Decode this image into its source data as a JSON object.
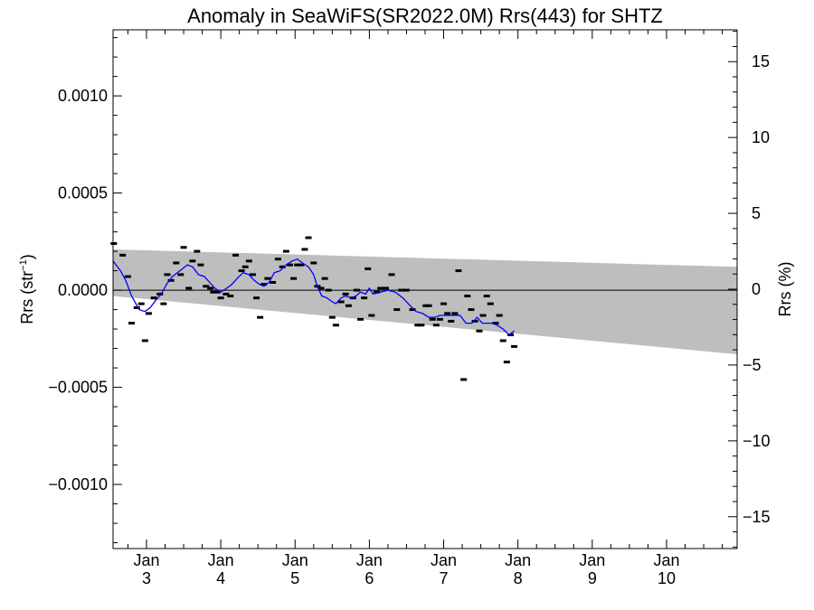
{
  "chart_data": {
    "type": "scatter",
    "title": "Anomaly in SeaWiFS(SR2022.0M) Rrs(443) for SHTZ",
    "ylabel_left": "Rrs (str",
    "ylabel_left_sup": "−1",
    "ylabel_left_close": ")",
    "ylabel_right": "Rrs (%)",
    "xlim": [
      2.55,
      10.95
    ],
    "ylim_left": [
      -0.00133,
      0.00134
    ],
    "ylim_right": [
      -17.1,
      17.1
    ],
    "x_ticks": [
      {
        "x": 3,
        "top": "Jan",
        "bottom": "3"
      },
      {
        "x": 4,
        "top": "Jan",
        "bottom": "4"
      },
      {
        "x": 5,
        "top": "Jan",
        "bottom": "5"
      },
      {
        "x": 6,
        "top": "Jan",
        "bottom": "6"
      },
      {
        "x": 7,
        "top": "Jan",
        "bottom": "7"
      },
      {
        "x": 8,
        "top": "Jan",
        "bottom": "8"
      },
      {
        "x": 9,
        "top": "Jan",
        "bottom": "9"
      },
      {
        "x": 10,
        "top": "Jan",
        "bottom": "10"
      }
    ],
    "y_ticks_left": [
      {
        "v": 0.001,
        "label": "0.0010"
      },
      {
        "v": 0.0005,
        "label": "0.0005"
      },
      {
        "v": 0.0,
        "label": "0.0000"
      },
      {
        "v": -0.0005,
        "label": "−0.0005"
      },
      {
        "v": -0.001,
        "label": "−0.0010"
      }
    ],
    "y_ticks_right": [
      {
        "v": 15,
        "label": "15"
      },
      {
        "v": 10,
        "label": "10"
      },
      {
        "v": 5,
        "label": "5"
      },
      {
        "v": 0,
        "label": "0"
      },
      {
        "v": -5,
        "label": "−5"
      },
      {
        "v": -10,
        "label": "−10"
      },
      {
        "v": -15,
        "label": "−15"
      }
    ],
    "band": {
      "color": "#bebebe",
      "x": [
        2.55,
        10.95
      ],
      "upper": [
        0.00021,
        0.00012
      ],
      "lower": [
        -3e-05,
        -0.00033
      ]
    },
    "zero_line": 0.0,
    "points": [
      {
        "x": 2.56,
        "y": 0.00024
      },
      {
        "x": 2.68,
        "y": 0.00018
      },
      {
        "x": 2.75,
        "y": 7e-05
      },
      {
        "x": 2.8,
        "y": -0.00017
      },
      {
        "x": 2.87,
        "y": -9e-05
      },
      {
        "x": 2.93,
        "y": -7e-05
      },
      {
        "x": 2.98,
        "y": -0.00026
      },
      {
        "x": 3.03,
        "y": -0.00012
      },
      {
        "x": 3.1,
        "y": -4e-05
      },
      {
        "x": 3.18,
        "y": -2e-05
      },
      {
        "x": 3.23,
        "y": -7e-05
      },
      {
        "x": 3.28,
        "y": 8e-05
      },
      {
        "x": 3.33,
        "y": 5e-05
      },
      {
        "x": 3.4,
        "y": 0.00014
      },
      {
        "x": 3.46,
        "y": 8e-05
      },
      {
        "x": 3.5,
        "y": 0.00022
      },
      {
        "x": 3.57,
        "y": 1e-05
      },
      {
        "x": 3.62,
        "y": 0.00015
      },
      {
        "x": 3.68,
        "y": 0.0002
      },
      {
        "x": 3.73,
        "y": 0.00013
      },
      {
        "x": 3.8,
        "y": 2e-05
      },
      {
        "x": 3.86,
        "y": 1e-05
      },
      {
        "x": 3.9,
        "y": -1e-05
      },
      {
        "x": 3.95,
        "y": -1e-05
      },
      {
        "x": 4.0,
        "y": -4e-05
      },
      {
        "x": 4.07,
        "y": -2e-05
      },
      {
        "x": 4.13,
        "y": -3e-05
      },
      {
        "x": 4.2,
        "y": 0.00018
      },
      {
        "x": 4.28,
        "y": 0.0001
      },
      {
        "x": 4.33,
        "y": 0.00012
      },
      {
        "x": 4.38,
        "y": 0.00015
      },
      {
        "x": 4.43,
        "y": 8e-05
      },
      {
        "x": 4.48,
        "y": -4e-05
      },
      {
        "x": 4.53,
        "y": -0.00014
      },
      {
        "x": 4.58,
        "y": 3e-05
      },
      {
        "x": 4.63,
        "y": 6e-05
      },
      {
        "x": 4.7,
        "y": 4e-05
      },
      {
        "x": 4.77,
        "y": 0.00016
      },
      {
        "x": 4.83,
        "y": 0.00012
      },
      {
        "x": 4.88,
        "y": 0.0002
      },
      {
        "x": 4.93,
        "y": 0.00013
      },
      {
        "x": 4.98,
        "y": 6e-05
      },
      {
        "x": 5.03,
        "y": 0.00013
      },
      {
        "x": 5.08,
        "y": 0.00013
      },
      {
        "x": 5.13,
        "y": 0.00021
      },
      {
        "x": 5.18,
        "y": 0.00027
      },
      {
        "x": 5.25,
        "y": 0.00014
      },
      {
        "x": 5.3,
        "y": 2e-05
      },
      {
        "x": 5.35,
        "y": 1e-05
      },
      {
        "x": 5.4,
        "y": 6e-05
      },
      {
        "x": 5.45,
        "y": 0.0
      },
      {
        "x": 5.5,
        "y": -0.00014
      },
      {
        "x": 5.55,
        "y": -0.00018
      },
      {
        "x": 5.62,
        "y": -6e-05
      },
      {
        "x": 5.68,
        "y": -2e-05
      },
      {
        "x": 5.72,
        "y": -8e-05
      },
      {
        "x": 5.78,
        "y": -4e-05
      },
      {
        "x": 5.83,
        "y": 0.0
      },
      {
        "x": 5.88,
        "y": -0.00015
      },
      {
        "x": 5.93,
        "y": -4e-05
      },
      {
        "x": 5.98,
        "y": 0.00011
      },
      {
        "x": 6.03,
        "y": -0.00013
      },
      {
        "x": 6.1,
        "y": -1e-05
      },
      {
        "x": 6.15,
        "y": 1e-05
      },
      {
        "x": 6.22,
        "y": 1e-05
      },
      {
        "x": 6.3,
        "y": 8e-05
      },
      {
        "x": 6.37,
        "y": -0.0001
      },
      {
        "x": 6.43,
        "y": 0.0
      },
      {
        "x": 6.5,
        "y": 0.0
      },
      {
        "x": 6.58,
        "y": -0.0001
      },
      {
        "x": 6.65,
        "y": -0.00018
      },
      {
        "x": 6.7,
        "y": -0.00018
      },
      {
        "x": 6.76,
        "y": -8e-05
      },
      {
        "x": 6.8,
        "y": -8e-05
      },
      {
        "x": 6.85,
        "y": -0.00015
      },
      {
        "x": 6.9,
        "y": -0.00018
      },
      {
        "x": 6.95,
        "y": -0.00015
      },
      {
        "x": 7.0,
        "y": -7e-05
      },
      {
        "x": 7.05,
        "y": -0.00012
      },
      {
        "x": 7.1,
        "y": -0.00016
      },
      {
        "x": 7.15,
        "y": -0.00012
      },
      {
        "x": 7.2,
        "y": 0.0001
      },
      {
        "x": 7.27,
        "y": -0.00046
      },
      {
        "x": 7.32,
        "y": -3e-05
      },
      {
        "x": 7.37,
        "y": -0.0001
      },
      {
        "x": 7.42,
        "y": -0.00016
      },
      {
        "x": 7.48,
        "y": -0.00021
      },
      {
        "x": 7.53,
        "y": -0.00013
      },
      {
        "x": 7.58,
        "y": -3e-05
      },
      {
        "x": 7.63,
        "y": -7e-05
      },
      {
        "x": 7.7,
        "y": -0.00017
      },
      {
        "x": 7.75,
        "y": -0.00013
      },
      {
        "x": 7.8,
        "y": -0.00026
      },
      {
        "x": 7.85,
        "y": -0.00037
      },
      {
        "x": 7.9,
        "y": -0.00023
      },
      {
        "x": 7.95,
        "y": -0.00029
      }
    ],
    "smooth_line": {
      "color": "#0000ff",
      "points": [
        {
          "x": 2.55,
          "y": 0.00015
        },
        {
          "x": 2.65,
          "y": 0.0001
        },
        {
          "x": 2.72,
          "y": 5e-05
        },
        {
          "x": 2.8,
          "y": -3e-05
        },
        {
          "x": 2.9,
          "y": -0.0001
        },
        {
          "x": 2.98,
          "y": -0.00011
        },
        {
          "x": 3.05,
          "y": -9e-05
        },
        {
          "x": 3.13,
          "y": -5e-05
        },
        {
          "x": 3.2,
          "y": -2e-05
        },
        {
          "x": 3.27,
          "y": 3e-05
        },
        {
          "x": 3.35,
          "y": 7e-05
        },
        {
          "x": 3.45,
          "y": 0.0001
        },
        {
          "x": 3.55,
          "y": 0.00013
        },
        {
          "x": 3.62,
          "y": 0.00012
        },
        {
          "x": 3.7,
          "y": 8e-05
        },
        {
          "x": 3.78,
          "y": 7e-05
        },
        {
          "x": 3.85,
          "y": 4e-05
        },
        {
          "x": 3.92,
          "y": 1e-05
        },
        {
          "x": 4.0,
          "y": -1e-05
        },
        {
          "x": 4.08,
          "y": 1e-05
        },
        {
          "x": 4.15,
          "y": 3e-05
        },
        {
          "x": 4.22,
          "y": 6e-05
        },
        {
          "x": 4.3,
          "y": 9e-05
        },
        {
          "x": 4.38,
          "y": 8e-05
        },
        {
          "x": 4.45,
          "y": 5e-05
        },
        {
          "x": 4.52,
          "y": 3e-05
        },
        {
          "x": 4.58,
          "y": 2e-05
        },
        {
          "x": 4.65,
          "y": 4e-05
        },
        {
          "x": 4.72,
          "y": 9e-05
        },
        {
          "x": 4.8,
          "y": 0.0001
        },
        {
          "x": 4.88,
          "y": 0.00013
        },
        {
          "x": 4.96,
          "y": 0.00015
        },
        {
          "x": 5.03,
          "y": 0.00016
        },
        {
          "x": 5.1,
          "y": 0.00014
        },
        {
          "x": 5.18,
          "y": 0.00012
        },
        {
          "x": 5.25,
          "y": 8e-05
        },
        {
          "x": 5.3,
          "y": 2e-05
        },
        {
          "x": 5.36,
          "y": -3e-05
        },
        {
          "x": 5.43,
          "y": -4e-05
        },
        {
          "x": 5.5,
          "y": -6e-05
        },
        {
          "x": 5.55,
          "y": -7e-05
        },
        {
          "x": 5.62,
          "y": -4e-05
        },
        {
          "x": 5.68,
          "y": -3e-05
        },
        {
          "x": 5.75,
          "y": -4e-05
        },
        {
          "x": 5.82,
          "y": -3e-05
        },
        {
          "x": 5.88,
          "y": -1e-05
        },
        {
          "x": 5.95,
          "y": -2e-05
        },
        {
          "x": 6.0,
          "y": 1e-05
        },
        {
          "x": 6.05,
          "y": -2e-05
        },
        {
          "x": 6.15,
          "y": -1e-05
        },
        {
          "x": 6.25,
          "y": 0.0
        },
        {
          "x": 6.35,
          "y": -1e-05
        },
        {
          "x": 6.45,
          "y": -4e-05
        },
        {
          "x": 6.55,
          "y": -8e-05
        },
        {
          "x": 6.63,
          "y": -0.00011
        },
        {
          "x": 6.72,
          "y": -0.00012
        },
        {
          "x": 6.8,
          "y": -0.00014
        },
        {
          "x": 6.88,
          "y": -0.00014
        },
        {
          "x": 6.95,
          "y": -0.00013
        },
        {
          "x": 7.03,
          "y": -0.00013
        },
        {
          "x": 7.1,
          "y": -0.00013
        },
        {
          "x": 7.15,
          "y": -0.00013
        },
        {
          "x": 7.22,
          "y": -0.00013
        },
        {
          "x": 7.3,
          "y": -0.00017
        },
        {
          "x": 7.38,
          "y": -0.00017
        },
        {
          "x": 7.45,
          "y": -0.00014
        },
        {
          "x": 7.52,
          "y": -0.00017
        },
        {
          "x": 7.58,
          "y": -0.00017
        },
        {
          "x": 7.65,
          "y": -0.00017
        },
        {
          "x": 7.72,
          "y": -0.00018
        },
        {
          "x": 7.8,
          "y": -0.0002
        },
        {
          "x": 7.88,
          "y": -0.00023
        },
        {
          "x": 7.95,
          "y": -0.00021
        }
      ]
    }
  }
}
